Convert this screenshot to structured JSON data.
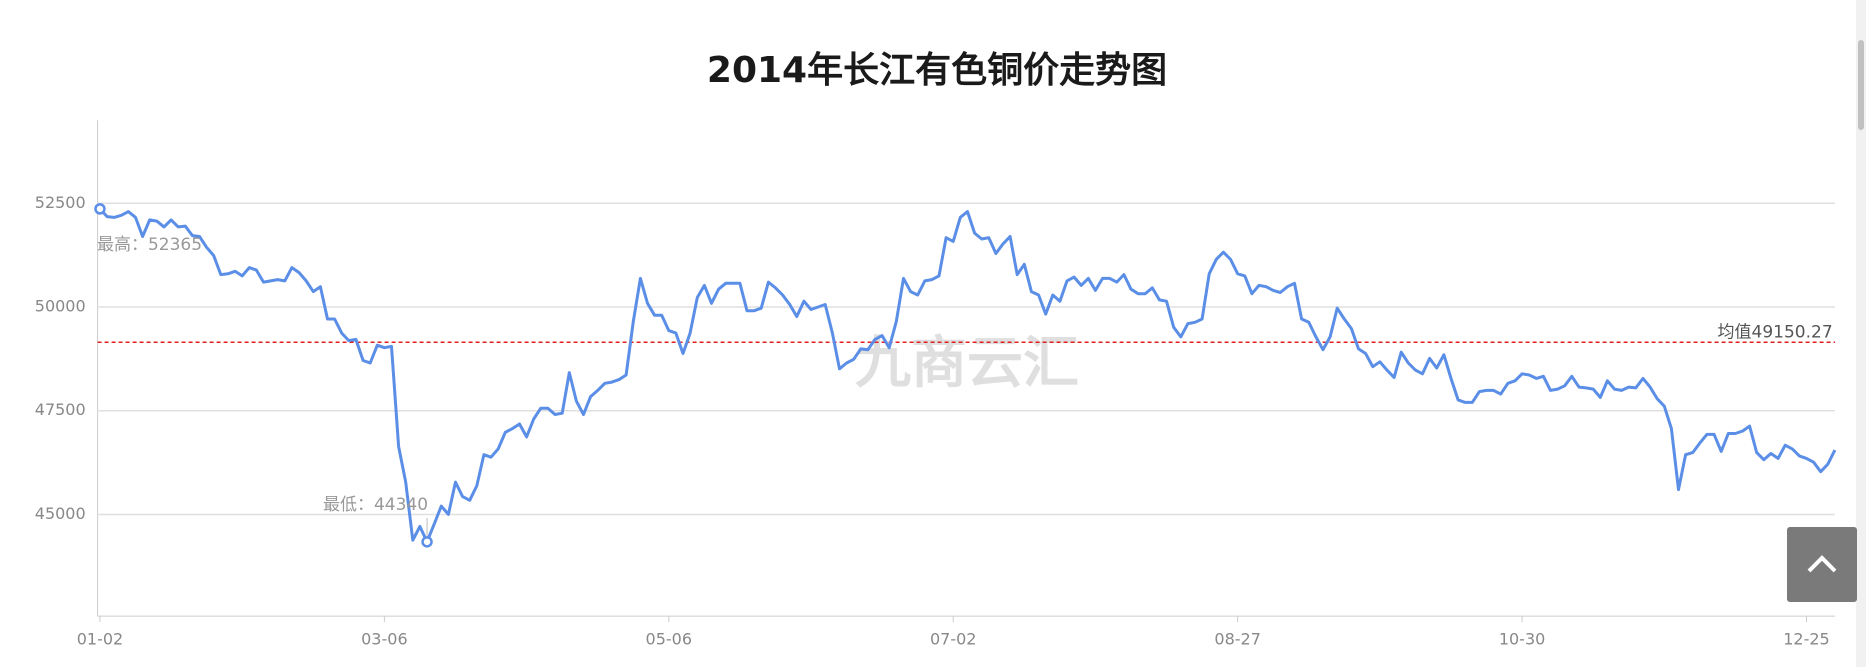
{
  "chart_data": {
    "type": "line",
    "title": "2014年长江有色铜价走势图",
    "color": "#5b8ee6",
    "categories": [
      "01-02",
      null,
      null,
      null,
      null,
      null,
      null,
      null,
      null,
      null,
      null,
      null,
      null,
      null,
      null,
      null,
      null,
      null,
      null,
      null,
      null,
      null,
      null,
      null,
      null,
      null,
      null,
      null,
      null,
      null,
      null,
      null,
      null,
      null,
      null,
      null,
      null,
      null,
      null,
      null,
      "03-06",
      null,
      null,
      null,
      null,
      null,
      null,
      null,
      null,
      null,
      null,
      null,
      null,
      null,
      null,
      null,
      null,
      null,
      null,
      null,
      null,
      null,
      null,
      null,
      null,
      null,
      null,
      null,
      null,
      null,
      null,
      null,
      null,
      null,
      null,
      null,
      null,
      null,
      null,
      null,
      "05-06",
      null,
      null,
      null,
      null,
      null,
      null,
      null,
      null,
      null,
      null,
      null,
      null,
      null,
      null,
      null,
      null,
      null,
      null,
      null,
      null,
      null,
      null,
      null,
      null,
      null,
      null,
      null,
      null,
      null,
      null,
      null,
      null,
      null,
      null,
      null,
      null,
      null,
      null,
      null,
      "07-02",
      null,
      null,
      null,
      null,
      null,
      null,
      null,
      null,
      null,
      null,
      null,
      null,
      null,
      null,
      null,
      null,
      null,
      null,
      null,
      null,
      null,
      null,
      null,
      null,
      null,
      null,
      null,
      null,
      null,
      null,
      null,
      null,
      null,
      null,
      null,
      null,
      null,
      null,
      null,
      "08-27",
      null,
      null,
      null,
      null,
      null,
      null,
      null,
      null,
      null,
      null,
      null,
      null,
      null,
      null,
      null,
      null,
      null,
      null,
      null,
      null,
      null,
      null,
      null,
      null,
      null,
      null,
      null,
      null,
      null,
      null,
      null,
      null,
      null,
      null,
      null,
      null,
      null,
      null,
      null,
      "10-30",
      null,
      null,
      null,
      null,
      null,
      null,
      null,
      null,
      null,
      null,
      null,
      null,
      null,
      null,
      null,
      null,
      null,
      null,
      null,
      null,
      null,
      null,
      null,
      null,
      null,
      null,
      null,
      null,
      null,
      null,
      null,
      null,
      null,
      null,
      null,
      null,
      null,
      null,
      null,
      "12-25",
      null,
      null,
      null,
      null
    ],
    "values": [
      52365,
      52180,
      52160,
      52210,
      52300,
      52160,
      51700,
      52100,
      52070,
      51930,
      52100,
      51930,
      51950,
      51720,
      51700,
      51440,
      51240,
      50780,
      50800,
      50860,
      50750,
      50950,
      50890,
      50600,
      50630,
      50660,
      50630,
      50950,
      50830,
      50630,
      50370,
      50490,
      49710,
      49710,
      49370,
      49190,
      49220,
      48710,
      48650,
      49080,
      49020,
      49050,
      46640,
      45780,
      44380,
      44710,
      44340,
      44770,
      45200,
      45000,
      45780,
      45430,
      45340,
      45690,
      46440,
      46380,
      46580,
      46980,
      47070,
      47180,
      46870,
      47300,
      47560,
      47560,
      47410,
      47440,
      48420,
      47730,
      47410,
      47840,
      47990,
      48160,
      48190,
      48250,
      48360,
      49650,
      50690,
      50090,
      49800,
      49800,
      49430,
      49370,
      48880,
      49370,
      50230,
      50520,
      50090,
      50430,
      50570,
      50570,
      50570,
      49910,
      49910,
      49970,
      50600,
      50460,
      50290,
      50060,
      49770,
      50140,
      49940,
      50000,
      50060,
      49370,
      48510,
      48650,
      48740,
      48990,
      48970,
      49220,
      49310,
      49020,
      49650,
      50690,
      50370,
      50290,
      50630,
      50660,
      50750,
      51670,
      51580,
      52160,
      52300,
      51780,
      51640,
      51670,
      51290,
      51520,
      51700,
      50780,
      51030,
      50370,
      50290,
      49830,
      50290,
      50140,
      50630,
      50720,
      50520,
      50690,
      50400,
      50690,
      50690,
      50600,
      50780,
      50430,
      50320,
      50320,
      50460,
      50170,
      50140,
      49510,
      49280,
      49600,
      49630,
      49710,
      50800,
      51150,
      51320,
      51150,
      50800,
      50750,
      50320,
      50520,
      50490,
      50400,
      50350,
      50490,
      50570,
      49710,
      49630,
      49280,
      48970,
      49280,
      49970,
      49710,
      49480,
      48990,
      48880,
      48560,
      48680,
      48480,
      48300,
      48910,
      48650,
      48480,
      48390,
      48760,
      48530,
      48850,
      48280,
      47760,
      47700,
      47700,
      47960,
      47990,
      47990,
      47900,
      48160,
      48220,
      48390,
      48360,
      48280,
      48330,
      47990,
      48020,
      48100,
      48330,
      48070,
      48050,
      48020,
      47820,
      48220,
      48020,
      47990,
      48070,
      48050,
      48280,
      48070,
      47790,
      47610,
      47070,
      45600,
      46440,
      46490,
      46720,
      46930,
      46930,
      46520,
      46950,
      46950,
      47010,
      47130,
      46490,
      46320,
      46470,
      46350,
      46670,
      46580,
      46410,
      46350,
      46260,
      46030,
      46210,
      46550
    ],
    "ylim": [
      42500,
      54500
    ],
    "yticks": [
      45000,
      47500,
      50000,
      52500
    ],
    "grid": true,
    "max_point": {
      "label": "最高：52365",
      "value": 52365,
      "index": 0
    },
    "min_point": {
      "label": "最低：44340",
      "value": 44340,
      "index": 46
    },
    "mean_line": {
      "label": "均值49150.27",
      "value": 49150.27,
      "color": "#e02020"
    },
    "watermark": "九商云汇"
  }
}
